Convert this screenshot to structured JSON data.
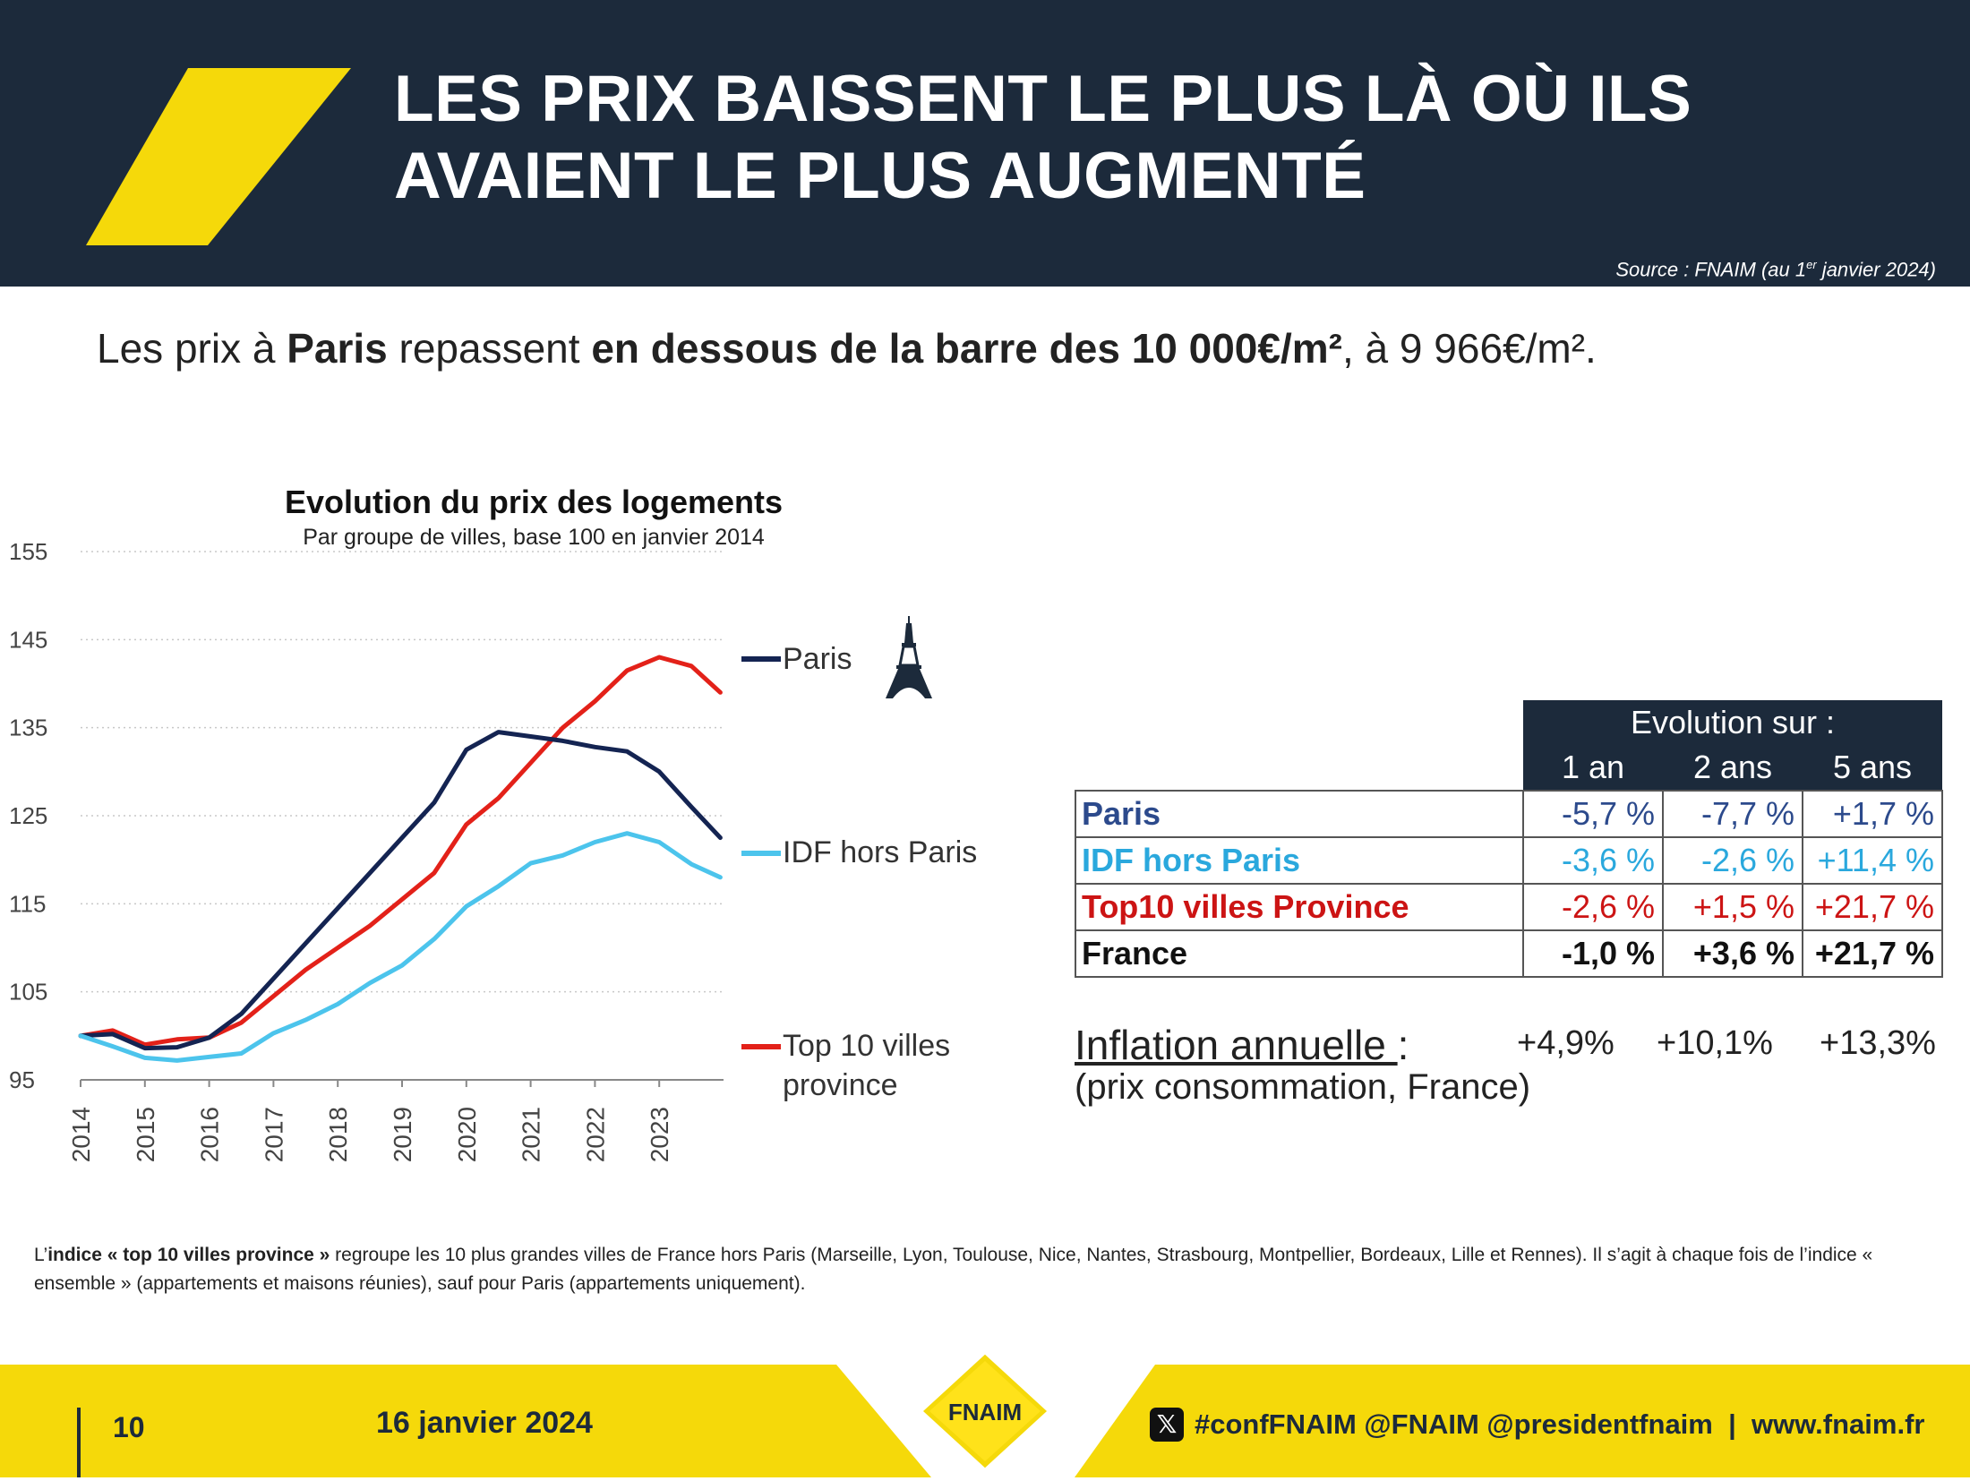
{
  "header": {
    "title_line1": "LES PRIX BAISSENT LE PLUS LÀ OÙ ILS",
    "title_line2": "AVAIENT LE PLUS AUGMENTÉ",
    "source_prefix": "Source : FNAIM (au 1",
    "source_sup": "er",
    "source_suffix": " janvier 2024)",
    "slash_color": "#f5d90a",
    "background_color": "#1c2a3b"
  },
  "lead": {
    "part1": "Les prix à ",
    "bold1": "Paris",
    "part2": " repassent ",
    "bold2": "en dessous de la barre des 10 000€/m²",
    "part3": ", à 9 966€/m²."
  },
  "chart_data": {
    "type": "line",
    "title": "Evolution du prix des logements",
    "subtitle": "Par groupe de villes, base 100 en janvier 2014",
    "ylim": [
      95,
      155
    ],
    "yticks": [
      95,
      105,
      115,
      125,
      135,
      145,
      155
    ],
    "xlim": [
      2014,
      2024
    ],
    "xticks": [
      "2014",
      "2015",
      "2016",
      "2017",
      "2018",
      "2019",
      "2020",
      "2021",
      "2022",
      "2023"
    ],
    "grid": "horizontal dotted",
    "legend_placement": "right, at line ends",
    "x": [
      2014.0,
      2014.5,
      2015.0,
      2015.5,
      2016.0,
      2016.5,
      2017.0,
      2017.5,
      2018.0,
      2018.5,
      2019.0,
      2019.5,
      2020.0,
      2020.5,
      2021.0,
      2021.5,
      2022.0,
      2022.5,
      2023.0,
      2023.5,
      2023.95
    ],
    "series": [
      {
        "name": "Paris",
        "color": "#142452",
        "values": [
          100,
          100.2,
          98.6,
          98.7,
          99.8,
          102.5,
          106.5,
          110.5,
          114.5,
          118.5,
          122.5,
          126.5,
          132.5,
          134.5,
          134,
          133.5,
          132.8,
          132.3,
          130,
          126,
          122.5
        ]
      },
      {
        "name": "IDF hors Paris",
        "color": "#4cc4ec",
        "values": [
          100,
          98.8,
          97.5,
          97.2,
          97.6,
          98,
          100.3,
          101.8,
          103.6,
          106,
          108,
          111,
          114.7,
          117,
          119.6,
          120.5,
          122,
          123,
          122,
          119.5,
          118
        ]
      },
      {
        "name": "Top 10 villes province",
        "color": "#e32119",
        "values": [
          100,
          100.6,
          99,
          99.6,
          99.8,
          101.5,
          104.5,
          107.5,
          110,
          112.5,
          115.5,
          118.5,
          124,
          127,
          131,
          135,
          138,
          141.5,
          143,
          142,
          139
        ]
      }
    ]
  },
  "legend": {
    "paris": "Paris",
    "idf": "IDF hors Paris",
    "top10_line1": "Top 10 villes",
    "top10_line2": "province",
    "eiffel_icon": "eiffel-tower-icon"
  },
  "table": {
    "header_top": "Evolution sur :",
    "columns": [
      "1 an",
      "2 ans",
      "5 ans"
    ],
    "rows": [
      {
        "label": "Paris",
        "color": "#2c4a8c",
        "values": [
          "-5,7  %",
          "-7,7  %",
          "+1,7  %"
        ]
      },
      {
        "label": "IDF hors Paris",
        "color": "#2aa8dd",
        "values": [
          "-3,6  %",
          "-2,6  %",
          "+11,4  %"
        ]
      },
      {
        "label": "Top10 villes Province",
        "color": "#cc1414",
        "values": [
          "-2,6  %",
          "+1,5  %",
          "+21,7  %"
        ]
      },
      {
        "label": "France",
        "color": "#111111",
        "values": [
          "-1,0  %",
          "+3,6  %",
          "+21,7  %"
        ]
      }
    ]
  },
  "inflation": {
    "label": "Inflation annuelle ",
    "colon": ":",
    "values": [
      "+4,9%",
      "+10,1%",
      "+13,3%"
    ],
    "note": "(prix consommation, France)"
  },
  "footnote": {
    "part1": "L’",
    "bold": "indice « top 10 villes province »",
    "part2": " regroupe les 10 plus grandes villes de France hors Paris (Marseille, Lyon, Toulouse, Nice, Nantes, Strasbourg, Montpellier, Bordeaux, Lille et Rennes). Il s’agit à chaque fois de l’indice « ensemble » (appartements et maisons réunies), sauf pour Paris (appartements uniquement)."
  },
  "footer": {
    "page_number": "10",
    "date": "16 janvier 2024",
    "social_icon": "x-logo-icon",
    "social": "#confFNAIM @FNAIM @presidentfnaim  |  www.fnaim.fr",
    "logo_text": "FNAIM",
    "footer_color": "#f5d90a"
  }
}
